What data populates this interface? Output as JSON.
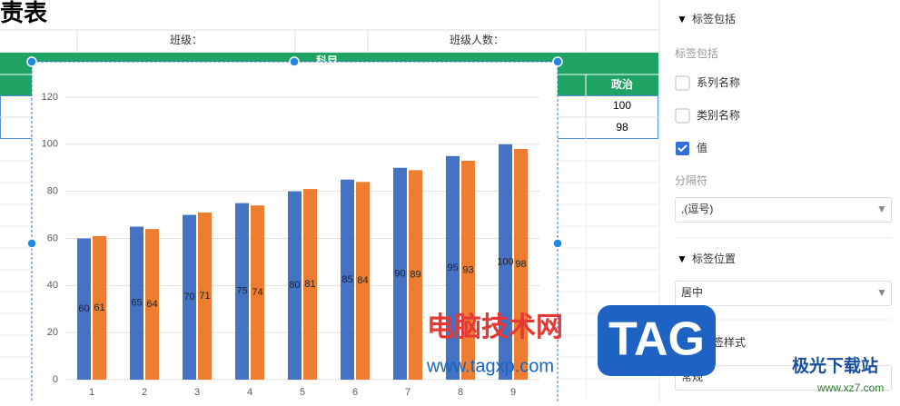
{
  "sheet": {
    "title": "责表",
    "class_label": "班级：",
    "count_label": "班级人数：",
    "subject": "科目",
    "column": "政治",
    "cells": [
      "100",
      "98"
    ]
  },
  "chart_data": {
    "type": "bar",
    "categories": [
      "1",
      "2",
      "3",
      "4",
      "5",
      "6",
      "7",
      "8",
      "9"
    ],
    "series": [
      {
        "color": "#4472c4",
        "values": [
          60,
          65,
          70,
          75,
          80,
          85,
          90,
          95,
          100
        ]
      },
      {
        "color": "#ed7d31",
        "values": [
          61,
          64,
          71,
          74,
          81,
          84,
          89,
          93,
          98
        ]
      }
    ],
    "ylim": [
      0,
      120
    ],
    "yticks": [
      0,
      20,
      40,
      60,
      80,
      100,
      120
    ],
    "grid": true,
    "data_labels": true
  },
  "panel": {
    "section1": "标签包括",
    "label_include": "标签包括",
    "options": [
      {
        "label": "系列名称",
        "checked": false
      },
      {
        "label": "类别名称",
        "checked": false
      },
      {
        "label": "值",
        "checked": true
      }
    ],
    "separator_label": "分隔符",
    "separator_value": ",(逗号)",
    "section2": "标签位置",
    "position_value": "居中",
    "section3": "签样式",
    "style_value": "常规"
  },
  "watermark": {
    "site_cn": "电脑技术网",
    "site_url": "www.tagxp.com",
    "logo": "TAG",
    "brand": "极光下载站",
    "brand_url": "www.xz7.com"
  }
}
